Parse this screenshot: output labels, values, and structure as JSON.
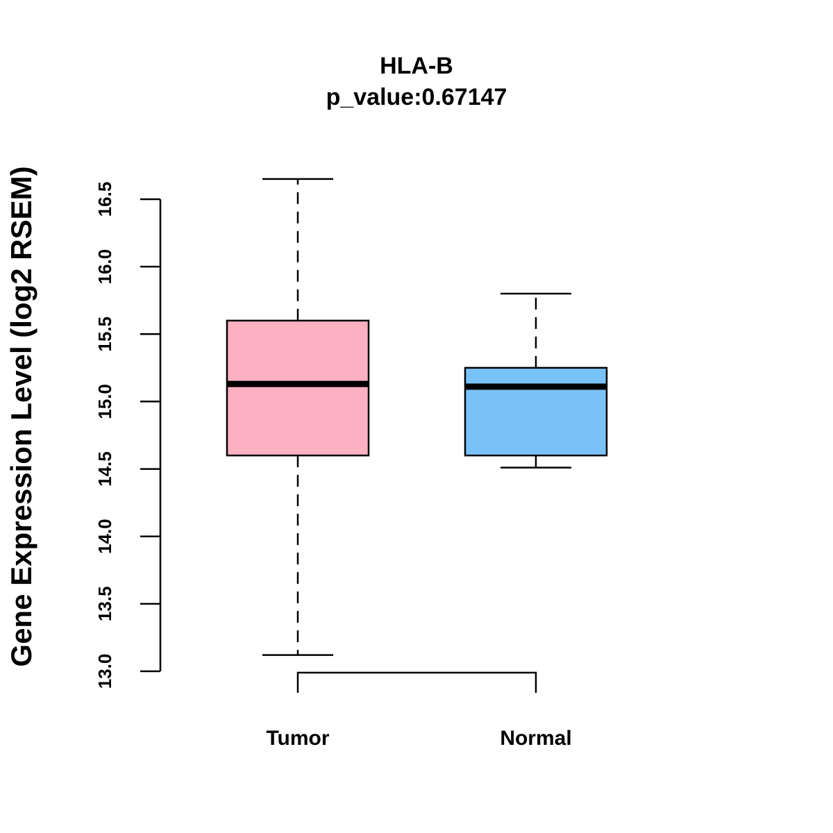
{
  "chart_data": {
    "type": "boxplot",
    "title": "HLA-B",
    "subtitle": "p_value:0.67147",
    "xlabel": "",
    "ylabel": "Gene Expression Level (log2 RSEM)",
    "ylim": [
      13.0,
      16.5
    ],
    "yticks": [
      13.0,
      13.5,
      14.0,
      14.5,
      15.0,
      15.5,
      16.0,
      16.5
    ],
    "ytick_labels": [
      "13.0",
      "13.5",
      "14.0",
      "14.5",
      "15.0",
      "15.5",
      "16.0",
      "16.5"
    ],
    "grid": false,
    "categories": [
      "Tumor",
      "Normal"
    ],
    "boxes": [
      {
        "name": "Tumor",
        "whisker_low": 13.12,
        "q1": 14.6,
        "median": 15.13,
        "q3": 15.6,
        "whisker_high": 16.65,
        "color": "#FCB1C3"
      },
      {
        "name": "Normal",
        "whisker_low": 14.51,
        "q1": 14.6,
        "median": 15.11,
        "q3": 15.25,
        "whisker_high": 15.8,
        "color": "#79C2F8"
      }
    ],
    "comparison_bracket": [
      "Tumor",
      "Normal"
    ]
  }
}
